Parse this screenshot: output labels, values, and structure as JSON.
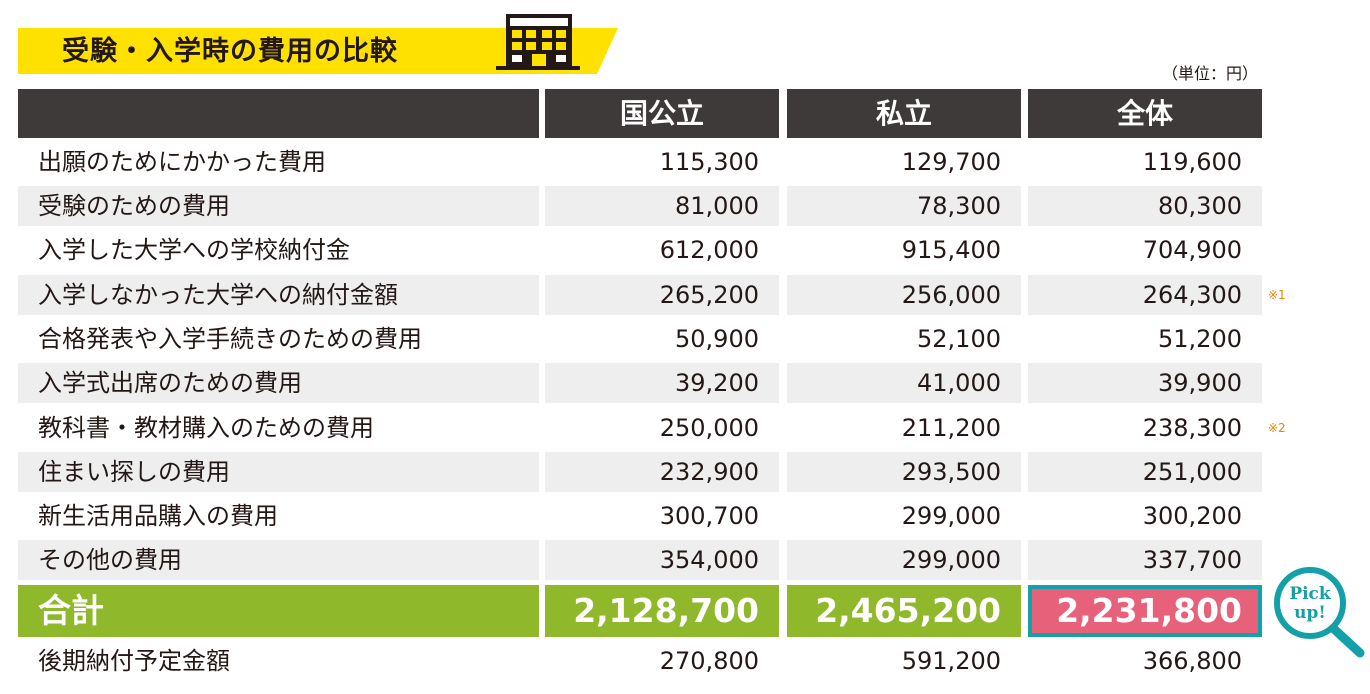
{
  "title": "受験・入学時の費用の比較",
  "unit_note": "（単位：円）",
  "columns": [
    "",
    "国公立",
    "私立",
    "全体"
  ],
  "rows": [
    {
      "label": "出願のためにかかった費用",
      "values": [
        "115,300",
        "129,700",
        "119,600"
      ],
      "note": ""
    },
    {
      "label": "受験のための費用",
      "values": [
        "81,000",
        "78,300",
        "80,300"
      ],
      "note": ""
    },
    {
      "label": "入学した大学への学校納付金",
      "values": [
        "612,000",
        "915,400",
        "704,900"
      ],
      "note": ""
    },
    {
      "label": "入学しなかった大学への納付金額",
      "values": [
        "265,200",
        "256,000",
        "264,300"
      ],
      "note": "※1"
    },
    {
      "label": "合格発表や入学手続きのための費用",
      "values": [
        "50,900",
        "52,100",
        "51,200"
      ],
      "note": ""
    },
    {
      "label": "入学式出席のための費用",
      "values": [
        "39,200",
        "41,000",
        "39,900"
      ],
      "note": ""
    },
    {
      "label": "教科書・教材購入のための費用",
      "values": [
        "250,000",
        "211,200",
        "238,300"
      ],
      "note": "※2"
    },
    {
      "label": "住まい探しの費用",
      "values": [
        "232,900",
        "293,500",
        "251,000"
      ],
      "note": ""
    },
    {
      "label": "新生活用品購入の費用",
      "values": [
        "300,700",
        "299,000",
        "300,200"
      ],
      "note": ""
    },
    {
      "label": "その他の費用",
      "values": [
        "354,000",
        "299,000",
        "337,700"
      ],
      "note": ""
    }
  ],
  "total": {
    "label": "合計",
    "values": [
      "2,128,700",
      "2,465,200",
      "2,231,800"
    ]
  },
  "after_total": {
    "label": "後期納付予定金額",
    "values": [
      "270,800",
      "591,200",
      "366,800"
    ]
  },
  "pickup_badge": {
    "line1": "Pick",
    "line2": "up!"
  },
  "icons": {
    "title": "building-icon",
    "badge": "magnifier-icon"
  },
  "colors": {
    "title_band": "#ffe100",
    "header_bg": "#3e3a39",
    "row_shade": "#eeeeee",
    "total_bg": "#8fb82b",
    "highlight_bg": "#e8617a",
    "highlight_border": "#13a0a8",
    "note_color": "#f08300"
  }
}
